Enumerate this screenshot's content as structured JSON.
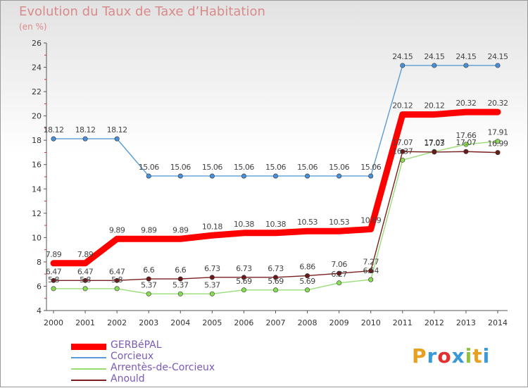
{
  "title": "Evolution du Taux de Taxe d’Habitation",
  "unit_label": "(en %)",
  "logo_text": "Proxiti",
  "colors": {
    "gerbepal": "#ff0000",
    "corcieux": "#5b9bd5",
    "arrentes": "#99dd77",
    "anould": "#8b2b2b",
    "logo": [
      "#e8a020",
      "#3a9ad9",
      "#e23030",
      "#3a9ad9",
      "#8cc63f",
      "#e8a020",
      "#3a9ad9"
    ]
  },
  "chart_data": {
    "type": "line",
    "title": "Evolution du Taux de Taxe d’Habitation",
    "ylabel": "(en %)",
    "xlabel": "",
    "x": [
      "2000",
      "2001",
      "2002",
      "2003",
      "2004",
      "2005",
      "2006",
      "2007",
      "2008",
      "2009",
      "2010",
      "2011",
      "2012",
      "2013",
      "2014"
    ],
    "ylim": [
      4,
      26
    ],
    "yticks": [
      4,
      6,
      8,
      10,
      12,
      14,
      16,
      18,
      20,
      22,
      24,
      26
    ],
    "grid": false,
    "legend": "bottom-left",
    "series": [
      {
        "name": "GERBéPAL",
        "color": "#ff0000",
        "values": [
          7.89,
          7.89,
          9.89,
          9.89,
          9.89,
          10.18,
          10.38,
          10.38,
          10.53,
          10.53,
          10.69,
          20.12,
          20.12,
          20.32,
          20.32
        ],
        "labels": [
          "7.89",
          "7.89",
          "9.89",
          "9.89",
          "9.89",
          "10.18",
          "10.38",
          "10.38",
          "10.53",
          "10.53",
          "10.69",
          "20.12",
          "20.12",
          "20.32",
          "20.32"
        ]
      },
      {
        "name": "Corcieux",
        "color": "#5b9bd5",
        "values": [
          18.12,
          18.12,
          18.12,
          15.06,
          15.06,
          15.06,
          15.06,
          15.06,
          15.06,
          15.06,
          15.06,
          24.15,
          24.15,
          24.15,
          24.15
        ],
        "labels": [
          "18.12",
          "18.12",
          "18.12",
          "15.06",
          "15.06",
          "15.06",
          "15.06",
          "15.06",
          "15.06",
          "15.06",
          "15.06",
          "24.15",
          "24.15",
          "24.15",
          "24.15"
        ]
      },
      {
        "name": "Arrentès-de-Corcieux",
        "color": "#99dd77",
        "values": [
          5.8,
          5.8,
          5.8,
          5.37,
          5.37,
          5.37,
          5.69,
          5.69,
          5.69,
          6.27,
          6.54,
          16.37,
          17.07,
          17.66,
          17.91
        ],
        "labels": [
          "5.8",
          "5.8",
          "5.8",
          "5.37",
          "5.37",
          "5.37",
          "5.69",
          "5.69",
          "5.69",
          "6.27",
          "6.54",
          "16.37",
          "17.07",
          "17.66",
          "17.91"
        ]
      },
      {
        "name": "Anould",
        "color": "#7a1f1f",
        "values": [
          6.47,
          6.47,
          6.47,
          6.6,
          6.6,
          6.73,
          6.73,
          6.73,
          6.86,
          7.06,
          7.27,
          17.07,
          17.03,
          17.07,
          16.99
        ],
        "labels": [
          "6.47",
          "6.47",
          "6.47",
          "6.6",
          "6.6",
          "6.73",
          "6.73",
          "6.73",
          "6.86",
          "7.06",
          "7.27",
          "17.07",
          "17.03",
          "17.07",
          "16.99"
        ]
      }
    ]
  }
}
